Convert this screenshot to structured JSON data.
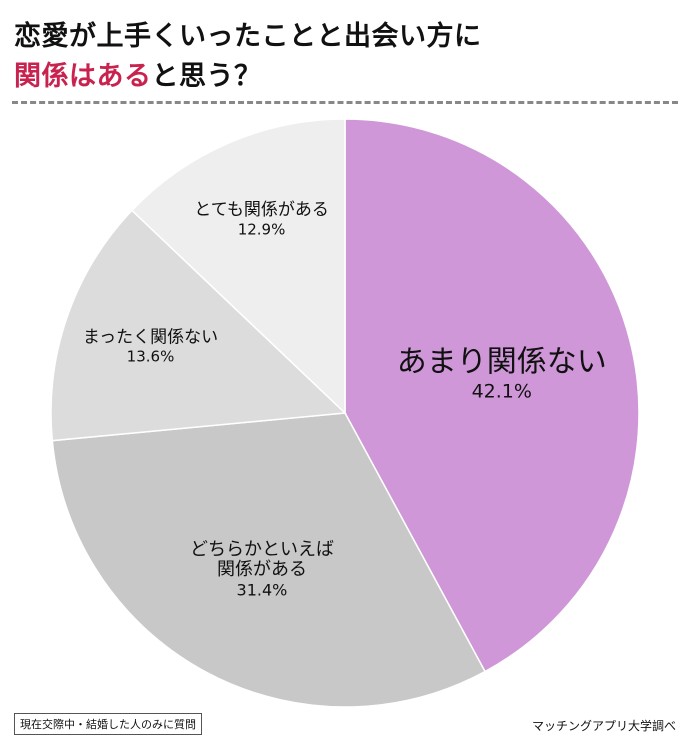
{
  "header": {
    "title_line1": "恋愛が上手くいったことと出会い方に",
    "title_line2_accent": "関係はある",
    "title_line2_rest": "と思う？",
    "accent_color": "#c8234f"
  },
  "chart_data": {
    "type": "pie",
    "title": "恋愛が上手くいったことと出会い方に関係はあると思う？",
    "unit": "%",
    "slices": [
      {
        "label": "あまり関係ない",
        "value": 42.1,
        "value_text": "42.1%",
        "color": "#cf97d8"
      },
      {
        "label": "どちらかといえば関係がある",
        "label_lines": [
          "どちらかといえば",
          "関係がある"
        ],
        "value": 31.4,
        "value_text": "31.4%",
        "color": "#c8c8c8"
      },
      {
        "label": "まったく関係ない",
        "value": 13.6,
        "value_text": "13.6%",
        "color": "#dcdcdc"
      },
      {
        "label": "とても関係がある",
        "value": 12.9,
        "value_text": "12.9%",
        "color": "#eeeeee"
      }
    ],
    "start": "12 o'clock",
    "direction": "clockwise"
  },
  "footer": {
    "note": "現在交際中・結婚した人のみに質問",
    "source": "マッチングアプリ大学調べ"
  }
}
